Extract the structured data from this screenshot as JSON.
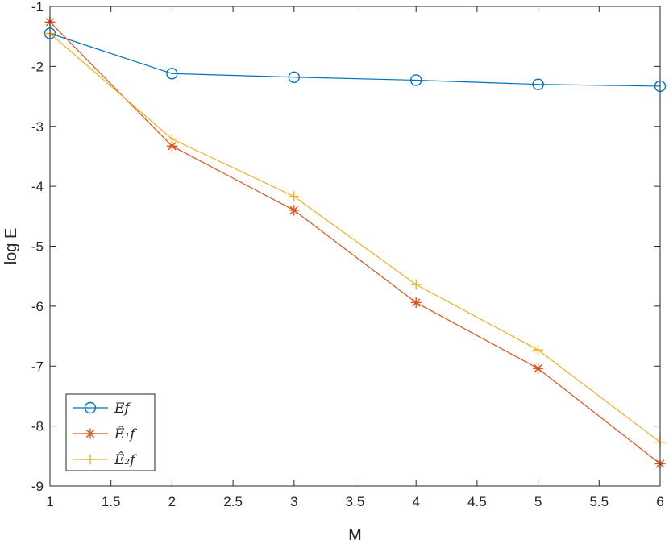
{
  "chart_data": {
    "type": "line",
    "title": "",
    "xlabel": "M",
    "ylabel": "log E",
    "xlim": [
      1,
      6
    ],
    "ylim": [
      -9,
      -1
    ],
    "xticks": [
      1,
      1.5,
      2,
      2.5,
      3,
      3.5,
      4,
      4.5,
      5,
      5.5,
      6
    ],
    "yticks": [
      -9,
      -8,
      -7,
      -6,
      -5,
      -4,
      -3,
      -2,
      -1
    ],
    "grid": false,
    "legend_position": "bottom-left",
    "x": [
      1,
      2,
      3,
      4,
      5,
      6
    ],
    "series": [
      {
        "name": "Ef",
        "marker": "circle",
        "color": "#0072BD",
        "values": [
          -1.45,
          -2.12,
          -2.18,
          -2.23,
          -2.3,
          -2.33
        ]
      },
      {
        "name": "Ê₁f",
        "marker": "asterisk",
        "color": "#D95319",
        "values": [
          -1.26,
          -3.33,
          -4.4,
          -5.94,
          -7.04,
          -8.63
        ]
      },
      {
        "name": "Ê₂f",
        "marker": "plus",
        "color": "#EDB120",
        "values": [
          -1.45,
          -3.21,
          -4.17,
          -5.64,
          -6.73,
          -8.27
        ]
      }
    ]
  }
}
